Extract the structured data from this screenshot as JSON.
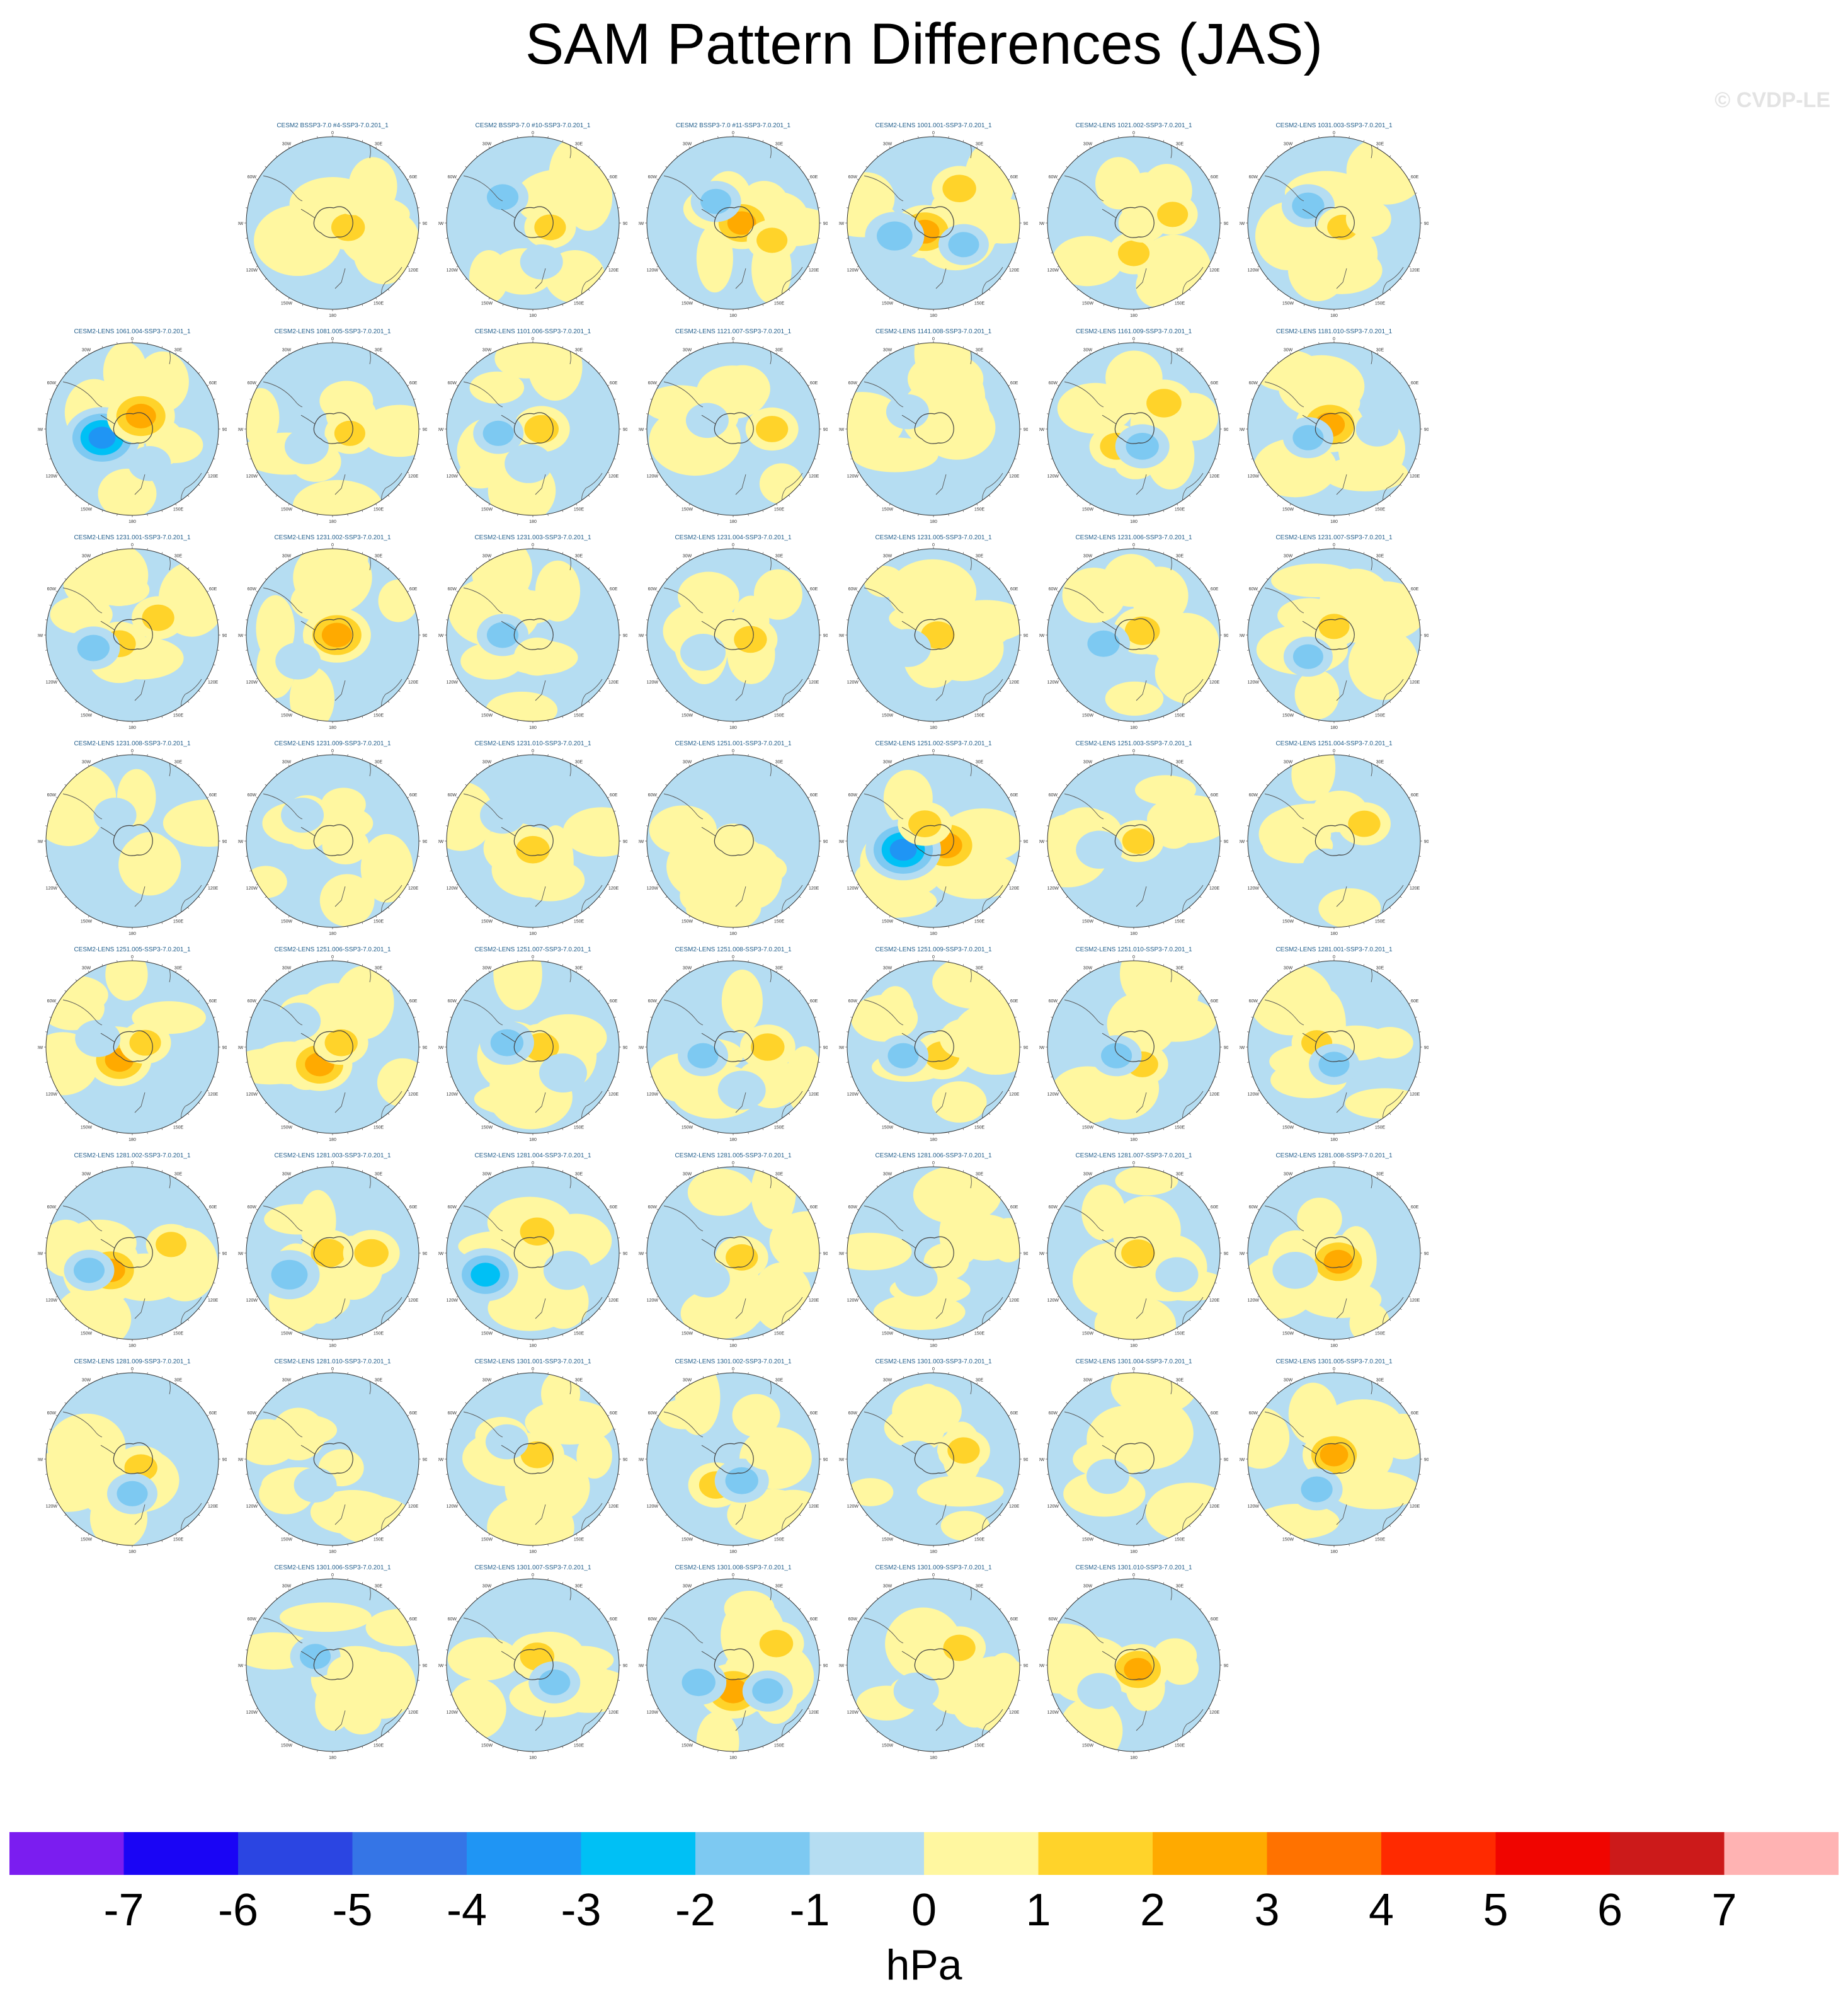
{
  "title": "SAM Pattern Differences (JAS)",
  "watermark": "© CVDP-LE",
  "colorbar": {
    "units": "hPa",
    "tick_labels": [
      "-7",
      "-6",
      "-5",
      "-4",
      "-3",
      "-2",
      "-1",
      "0",
      "1",
      "2",
      "3",
      "4",
      "5",
      "6",
      "7"
    ],
    "colors": [
      "#7b1df0",
      "#1a05f5",
      "#2b45e2",
      "#3575e6",
      "#1f95f4",
      "#00c0f5",
      "#7dc9f2",
      "#b5ddf2",
      "#fff7a0",
      "#ffd32a",
      "#ffaa00",
      "#ff7200",
      "#ff2a00",
      "#f00500",
      "#cc1a1a",
      "#ffb3b3"
    ]
  },
  "chart_data": {
    "type": "heatmap",
    "projection": "south polar stereographic",
    "variable": "SAM pattern difference",
    "season": "JAS",
    "units": "hPa",
    "value_range": [
      -7,
      7
    ],
    "contour_interval": 1,
    "map_labels": {
      "top": "0",
      "right": "90E",
      "bottom": "180",
      "left": "90W",
      "upper_left": "30W",
      "upper_left2": "60W",
      "upper_right": "30E",
      "upper_right2": "60E",
      "lower_left": "120W",
      "lower_left2": "150W",
      "lower_right": "120E",
      "lower_right2": "150E"
    },
    "panels": [
      {
        "title": "CESM2 BSSP3-7.0 #4-SSP3-7.0.201_1",
        "row": 0,
        "col": 1,
        "anomalies": [
          [
            0.18,
            0.05,
            1.6
          ],
          [
            0.25,
            -0.3,
            0.7
          ]
        ]
      },
      {
        "title": "CESM2 BSSP3-7.0 #10-SSP3-7.0.201_1",
        "row": 0,
        "col": 2,
        "anomalies": [
          [
            0.2,
            0.05,
            1.3
          ],
          [
            -0.35,
            -0.3,
            -1.3
          ],
          [
            0.1,
            0.45,
            -0.6
          ]
        ]
      },
      {
        "title": "CESM2 BSSP3-7.0 #11-SSP3-7.0.201_1",
        "row": 0,
        "col": 3,
        "anomalies": [
          [
            0.1,
            0.0,
            2.3
          ],
          [
            -0.2,
            -0.25,
            -1.2
          ],
          [
            0.45,
            0.2,
            1.2
          ]
        ]
      },
      {
        "title": "CESM2-LENS 1001.001-SSP3-7.0.201_1",
        "row": 0,
        "col": 4,
        "anomalies": [
          [
            -0.1,
            0.1,
            2.4
          ],
          [
            -0.45,
            0.15,
            -1.9
          ],
          [
            0.3,
            -0.4,
            1.6
          ],
          [
            0.35,
            0.25,
            -1.2
          ]
        ]
      },
      {
        "title": "CESM2-LENS 1021.002-SSP3-7.0.201_1",
        "row": 0,
        "col": 5,
        "anomalies": [
          [
            0.0,
            0.35,
            1.3
          ],
          [
            0.1,
            0.0,
            1.0
          ],
          [
            0.45,
            -0.1,
            1.2
          ]
        ]
      },
      {
        "title": "CESM2-LENS 1031.003-SSP3-7.0.201_1",
        "row": 0,
        "col": 6,
        "anomalies": [
          [
            -0.3,
            -0.2,
            -1.4
          ],
          [
            0.1,
            0.05,
            1.2
          ],
          [
            0.4,
            -0.05,
            0.8
          ]
        ]
      },
      {
        "title": "CESM2-LENS 1061.004-SSP3-7.0.201_1",
        "row": 1,
        "col": 0,
        "anomalies": [
          [
            -0.35,
            0.1,
            -3.2
          ],
          [
            0.1,
            -0.15,
            2.6
          ],
          [
            0.2,
            0.4,
            -0.6
          ]
        ]
      },
      {
        "title": "CESM2-LENS 1081.005-SSP3-7.0.201_1",
        "row": 1,
        "col": 1,
        "anomalies": [
          [
            0.2,
            0.05,
            1.2
          ],
          [
            -0.3,
            0.2,
            -0.7
          ]
        ]
      },
      {
        "title": "CESM2-LENS 1101.006-SSP3-7.0.201_1",
        "row": 1,
        "col": 2,
        "anomalies": [
          [
            0.1,
            0.0,
            1.7
          ],
          [
            -0.4,
            0.05,
            -1.2
          ],
          [
            -0.05,
            0.4,
            -1.0
          ]
        ]
      },
      {
        "title": "CESM2-LENS 1121.007-SSP3-7.0.201_1",
        "row": 1,
        "col": 3,
        "anomalies": [
          [
            0.45,
            0.0,
            1.4
          ],
          [
            -0.3,
            -0.1,
            -0.6
          ]
        ]
      },
      {
        "title": "CESM2-LENS 1141.008-SSP3-7.0.201_1",
        "row": 1,
        "col": 4,
        "anomalies": [
          [
            0.2,
            0.1,
            0.8
          ],
          [
            -0.3,
            -0.2,
            -0.6
          ]
        ]
      },
      {
        "title": "CESM2-LENS 1161.009-SSP3-7.0.201_1",
        "row": 1,
        "col": 5,
        "anomalies": [
          [
            0.35,
            -0.3,
            1.8
          ],
          [
            -0.2,
            0.2,
            1.5
          ],
          [
            0.1,
            0.2,
            -1.5
          ]
        ]
      },
      {
        "title": "CESM2-LENS 1181.010-SSP3-7.0.201_1",
        "row": 1,
        "col": 6,
        "anomalies": [
          [
            -0.05,
            -0.05,
            2.6
          ],
          [
            -0.3,
            0.1,
            -1.2
          ],
          [
            0.5,
            0.0,
            -0.6
          ]
        ]
      },
      {
        "title": "CESM2-LENS 1231.001-SSP3-7.0.201_1",
        "row": 2,
        "col": 0,
        "anomalies": [
          [
            -0.15,
            0.1,
            1.5
          ],
          [
            0.3,
            -0.2,
            1.4
          ],
          [
            -0.45,
            0.15,
            -1.4
          ]
        ]
      },
      {
        "title": "CESM2-LENS 1231.002-SSP3-7.0.201_1",
        "row": 2,
        "col": 1,
        "anomalies": [
          [
            0.05,
            0.0,
            2.6
          ],
          [
            -0.4,
            0.3,
            -0.8
          ]
        ]
      },
      {
        "title": "CESM2-LENS 1231.003-SSP3-7.0.201_1",
        "row": 2,
        "col": 2,
        "anomalies": [
          [
            -0.35,
            0.0,
            -1.3
          ],
          [
            0.05,
            0.25,
            0.9
          ]
        ]
      },
      {
        "title": "CESM2-LENS 1231.004-SSP3-7.0.201_1",
        "row": 2,
        "col": 3,
        "anomalies": [
          [
            0.2,
            0.05,
            1.5
          ],
          [
            -0.35,
            0.2,
            -0.8
          ]
        ]
      },
      {
        "title": "CESM2-LENS 1231.005-SSP3-7.0.201_1",
        "row": 2,
        "col": 4,
        "anomalies": [
          [
            0.05,
            0.0,
            1.6
          ],
          [
            -0.3,
            0.15,
            -0.9
          ]
        ]
      },
      {
        "title": "CESM2-LENS 1231.006-SSP3-7.0.201_1",
        "row": 2,
        "col": 5,
        "anomalies": [
          [
            0.1,
            -0.05,
            1.8
          ],
          [
            -0.35,
            0.1,
            -1.4
          ]
        ]
      },
      {
        "title": "CESM2-LENS 1231.007-SSP3-7.0.201_1",
        "row": 2,
        "col": 6,
        "anomalies": [
          [
            0.0,
            -0.1,
            1.2
          ],
          [
            -0.3,
            0.25,
            -1.1
          ]
        ]
      },
      {
        "title": "CESM2-LENS 1231.008-SSP3-7.0.201_1",
        "row": 3,
        "col": 0,
        "anomalies": [
          [
            0.2,
            0.1,
            0.6
          ],
          [
            -0.2,
            -0.3,
            -0.6
          ]
        ]
      },
      {
        "title": "CESM2-LENS 1231.009-SSP3-7.0.201_1",
        "row": 3,
        "col": 1,
        "anomalies": [
          [
            0.15,
            0.05,
            0.9
          ],
          [
            -0.35,
            -0.3,
            -0.6
          ]
        ]
      },
      {
        "title": "CESM2-LENS 1231.010-SSP3-7.0.201_1",
        "row": 3,
        "col": 2,
        "anomalies": [
          [
            0.0,
            0.1,
            1.6
          ],
          [
            -0.35,
            -0.3,
            -0.8
          ]
        ]
      },
      {
        "title": "CESM2-LENS 1251.001-SSP3-7.0.201_1",
        "row": 3,
        "col": 3,
        "anomalies": [
          [
            0.0,
            0.0,
            0.6
          ],
          [
            0.3,
            -0.3,
            -0.6
          ]
        ]
      },
      {
        "title": "CESM2-LENS 1251.002-SSP3-7.0.201_1",
        "row": 3,
        "col": 4,
        "anomalies": [
          [
            0.15,
            0.05,
            2.9
          ],
          [
            -0.35,
            0.1,
            -3.2
          ],
          [
            -0.1,
            -0.2,
            1.5
          ]
        ]
      },
      {
        "title": "CESM2-LENS 1251.003-SSP3-7.0.201_1",
        "row": 3,
        "col": 5,
        "anomalies": [
          [
            0.05,
            0.0,
            1.3
          ],
          [
            -0.4,
            0.1,
            -0.9
          ]
        ]
      },
      {
        "title": "CESM2-LENS 1251.004-SSP3-7.0.201_1",
        "row": 3,
        "col": 6,
        "anomalies": [
          [
            0.35,
            -0.2,
            1.4
          ],
          [
            -0.1,
            0.3,
            -0.8
          ]
        ]
      },
      {
        "title": "CESM2-LENS 1251.005-SSP3-7.0.201_1",
        "row": 4,
        "col": 0,
        "anomalies": [
          [
            -0.15,
            0.15,
            2.3
          ],
          [
            0.15,
            -0.05,
            1.3
          ],
          [
            -0.4,
            -0.1,
            -0.8
          ]
        ]
      },
      {
        "title": "CESM2-LENS 1251.006-SSP3-7.0.201_1",
        "row": 4,
        "col": 1,
        "anomalies": [
          [
            -0.15,
            0.2,
            2.4
          ],
          [
            0.1,
            -0.05,
            1.5
          ],
          [
            -0.4,
            -0.3,
            -0.8
          ]
        ]
      },
      {
        "title": "CESM2-LENS 1251.007-SSP3-7.0.201_1",
        "row": 4,
        "col": 2,
        "anomalies": [
          [
            0.1,
            0.0,
            1.8
          ],
          [
            -0.3,
            -0.05,
            -1.5
          ],
          [
            0.35,
            0.3,
            -1.0
          ]
        ]
      },
      {
        "title": "CESM2-LENS 1251.008-SSP3-7.0.201_1",
        "row": 4,
        "col": 3,
        "anomalies": [
          [
            0.4,
            0.0,
            1.6
          ],
          [
            -0.35,
            0.1,
            -1.2
          ],
          [
            0.1,
            0.5,
            -1.0
          ]
        ]
      },
      {
        "title": "CESM2-LENS 1251.009-SSP3-7.0.201_1",
        "row": 4,
        "col": 4,
        "anomalies": [
          [
            0.1,
            0.1,
            1.8
          ],
          [
            -0.35,
            0.1,
            -1.2
          ],
          [
            0.35,
            -0.1,
            1.0
          ]
        ]
      },
      {
        "title": "CESM2-LENS 1251.010-SSP3-7.0.201_1",
        "row": 4,
        "col": 5,
        "anomalies": [
          [
            0.1,
            0.2,
            1.3
          ],
          [
            -0.2,
            0.1,
            -1.2
          ]
        ]
      },
      {
        "title": "CESM2-LENS 1281.001-SSP3-7.0.201_1",
        "row": 4,
        "col": 6,
        "anomalies": [
          [
            -0.2,
            -0.05,
            1.2
          ],
          [
            0.0,
            0.2,
            -1.2
          ]
        ]
      },
      {
        "title": "CESM2-LENS 1281.002-SSP3-7.0.201_1",
        "row": 5,
        "col": 0,
        "anomalies": [
          [
            -0.25,
            0.2,
            2.3
          ],
          [
            0.45,
            -0.1,
            1.2
          ],
          [
            -0.5,
            0.2,
            -1.2
          ]
        ]
      },
      {
        "title": "CESM2-LENS 1281.003-SSP3-7.0.201_1",
        "row": 5,
        "col": 1,
        "anomalies": [
          [
            -0.05,
            0.0,
            1.8
          ],
          [
            0.45,
            0.0,
            1.7
          ],
          [
            -0.5,
            0.25,
            -2.0
          ]
        ]
      },
      {
        "title": "CESM2-LENS 1281.004-SSP3-7.0.201_1",
        "row": 5,
        "col": 2,
        "anomalies": [
          [
            0.05,
            -0.25,
            1.7
          ],
          [
            -0.55,
            0.25,
            -2.4
          ],
          [
            0.4,
            0.2,
            -1.0
          ]
        ]
      },
      {
        "title": "CESM2-LENS 1281.005-SSP3-7.0.201_1",
        "row": 5,
        "col": 3,
        "anomalies": [
          [
            0.1,
            0.05,
            1.4
          ],
          [
            -0.3,
            0.3,
            -0.8
          ]
        ]
      },
      {
        "title": "CESM2-LENS 1281.006-SSP3-7.0.201_1",
        "row": 5,
        "col": 4,
        "anomalies": [
          [
            0.15,
            0.1,
            0.8
          ],
          [
            -0.2,
            0.3,
            -0.6
          ]
        ]
      },
      {
        "title": "CESM2-LENS 1281.007-SSP3-7.0.201_1",
        "row": 5,
        "col": 5,
        "anomalies": [
          [
            0.05,
            0.0,
            1.6
          ],
          [
            0.5,
            0.25,
            -0.6
          ]
        ]
      },
      {
        "title": "CESM2-LENS 1281.008-SSP3-7.0.201_1",
        "row": 5,
        "col": 6,
        "anomalies": [
          [
            0.05,
            0.1,
            2.4
          ],
          [
            -0.45,
            0.2,
            -0.8
          ]
        ]
      },
      {
        "title": "CESM2-LENS 1281.009-SSP3-7.0.201_1",
        "row": 6,
        "col": 0,
        "anomalies": [
          [
            0.1,
            0.1,
            1.5
          ],
          [
            0.0,
            0.4,
            -1.2
          ]
        ]
      },
      {
        "title": "CESM2-LENS 1281.010-SSP3-7.0.201_1",
        "row": 6,
        "col": 1,
        "anomalies": [
          [
            0.1,
            0.1,
            0.8
          ],
          [
            -0.2,
            0.3,
            -0.6
          ]
        ]
      },
      {
        "title": "CESM2-LENS 1301.001-SSP3-7.0.201_1",
        "row": 6,
        "col": 2,
        "anomalies": [
          [
            0.05,
            -0.05,
            1.5
          ],
          [
            -0.3,
            -0.2,
            -0.6
          ]
        ]
      },
      {
        "title": "CESM2-LENS 1301.002-SSP3-7.0.201_1",
        "row": 6,
        "col": 3,
        "anomalies": [
          [
            -0.2,
            0.3,
            1.6
          ],
          [
            0.1,
            0.25,
            -1.5
          ],
          [
            0.4,
            -0.1,
            1.0
          ]
        ]
      },
      {
        "title": "CESM2-LENS 1301.003-SSP3-7.0.201_1",
        "row": 6,
        "col": 4,
        "anomalies": [
          [
            0.35,
            -0.1,
            1.4
          ],
          [
            -0.2,
            0.0,
            -0.8
          ]
        ]
      },
      {
        "title": "CESM2-LENS 1301.004-SSP3-7.0.201_1",
        "row": 6,
        "col": 5,
        "anomalies": [
          [
            0.1,
            -0.1,
            0.6
          ],
          [
            -0.3,
            0.2,
            -0.6
          ]
        ]
      },
      {
        "title": "CESM2-LENS 1301.005-SSP3-7.0.201_1",
        "row": 6,
        "col": 6,
        "anomalies": [
          [
            0.0,
            -0.05,
            2.2
          ],
          [
            -0.2,
            0.35,
            -1.3
          ]
        ]
      },
      {
        "title": "CESM2-LENS 1301.006-SSP3-7.0.201_1",
        "row": 7,
        "col": 1,
        "anomalies": [
          [
            -0.2,
            -0.1,
            -1.2
          ],
          [
            0.2,
            0.1,
            0.8
          ]
        ]
      },
      {
        "title": "CESM2-LENS 1301.007-SSP3-7.0.201_1",
        "row": 7,
        "col": 2,
        "anomalies": [
          [
            0.05,
            -0.1,
            1.7
          ],
          [
            0.25,
            0.2,
            -1.3
          ]
        ]
      },
      {
        "title": "CESM2-LENS 1301.008-SSP3-7.0.201_1",
        "row": 7,
        "col": 3,
        "anomalies": [
          [
            0.0,
            0.3,
            2.6
          ],
          [
            0.5,
            -0.25,
            1.6
          ],
          [
            -0.4,
            0.2,
            -1.6
          ],
          [
            0.4,
            0.3,
            -1.2
          ]
        ]
      },
      {
        "title": "CESM2-LENS 1301.009-SSP3-7.0.201_1",
        "row": 7,
        "col": 4,
        "anomalies": [
          [
            0.3,
            -0.2,
            1.4
          ],
          [
            -0.2,
            0.3,
            -0.8
          ]
        ]
      },
      {
        "title": "CESM2-LENS 1301.010-SSP3-7.0.201_1",
        "row": 7,
        "col": 5,
        "anomalies": [
          [
            0.05,
            0.05,
            2.2
          ],
          [
            -0.4,
            0.3,
            -0.7
          ]
        ]
      }
    ]
  }
}
